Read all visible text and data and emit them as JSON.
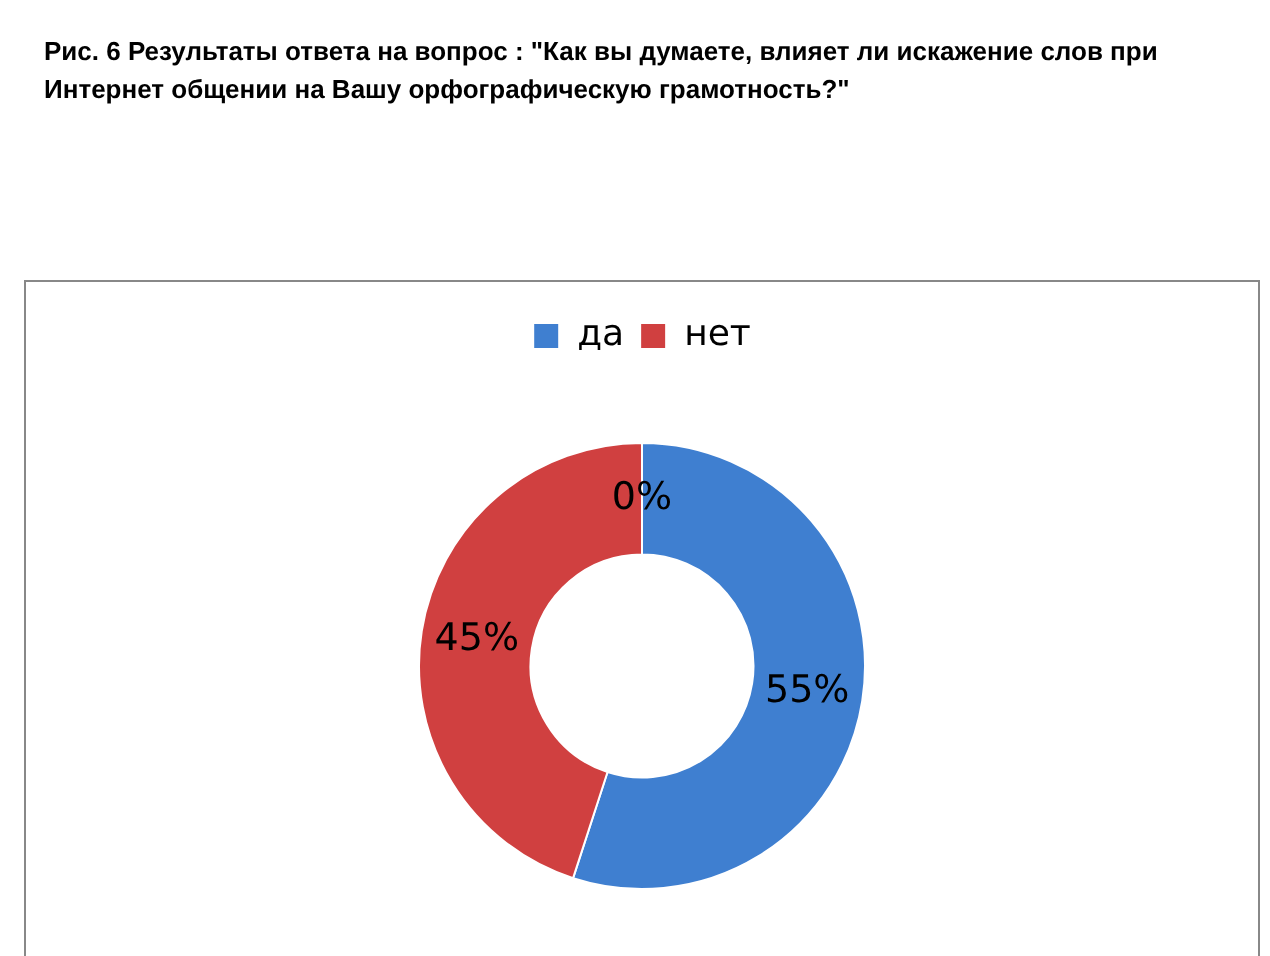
{
  "chart_data": {
    "type": "donut",
    "title": "Рис. 6 Результаты ответа на вопрос : \"Как вы думаете, влияет ли искажение слов при Интернет общении на Вашу орфографическую грамотность?\"",
    "categories": [
      "да",
      "нет"
    ],
    "values": [
      55,
      45
    ],
    "colors": [
      "#3f7fd0",
      "#d04040"
    ],
    "value_labels": [
      "55%",
      "45%"
    ],
    "annotations": [
      "0%"
    ],
    "legend": "top"
  }
}
